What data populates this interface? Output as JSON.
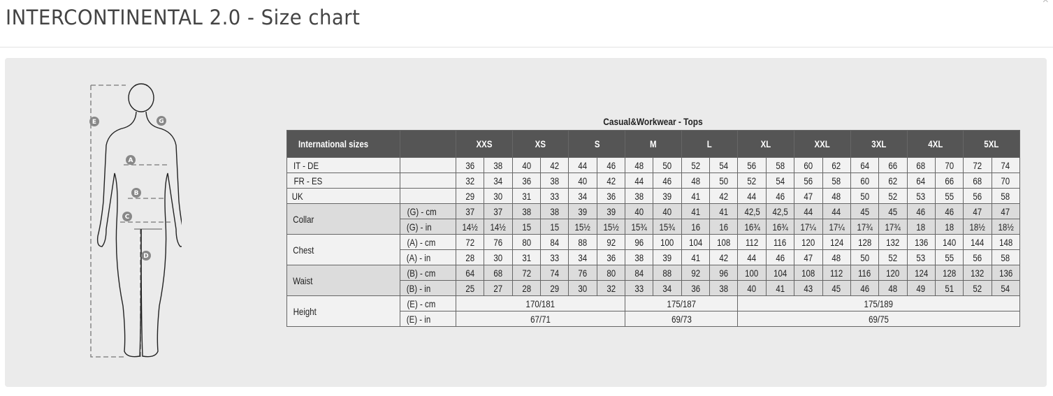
{
  "header": {
    "title": "INTERCONTINENTAL 2.0 - Size chart",
    "close_label": "×"
  },
  "figure": {
    "labels": [
      "A",
      "B",
      "C",
      "D",
      "E",
      "G"
    ]
  },
  "table": {
    "caption": "Casual&Workwear - Tops",
    "header_label": "International sizes",
    "sizes": [
      "XXS",
      "XS",
      "S",
      "M",
      "L",
      "XL",
      "XXL",
      "3XL",
      "4XL",
      "5XL"
    ],
    "rows": [
      {
        "group": "IT - DE",
        "unit": "",
        "shade": "light",
        "values": [
          "36",
          "38",
          "40",
          "42",
          "44",
          "46",
          "48",
          "50",
          "52",
          "54",
          "56",
          "58",
          "60",
          "62",
          "64",
          "66",
          "68",
          "70",
          "72",
          "74"
        ]
      },
      {
        "group": "FR - ES",
        "unit": "",
        "shade": "light",
        "values": [
          "32",
          "34",
          "36",
          "38",
          "40",
          "42",
          "44",
          "46",
          "48",
          "50",
          "52",
          "54",
          "56",
          "58",
          "60",
          "62",
          "64",
          "66",
          "68",
          "70"
        ]
      },
      {
        "group": "UK",
        "unit": "",
        "shade": "light",
        "values": [
          "29",
          "30",
          "31",
          "33",
          "34",
          "36",
          "38",
          "39",
          "41",
          "42",
          "44",
          "46",
          "47",
          "48",
          "50",
          "52",
          "53",
          "55",
          "56",
          "58"
        ]
      },
      {
        "group": "Collar",
        "unit": "(G) - cm",
        "shade": "dark",
        "values": [
          "37",
          "37",
          "38",
          "38",
          "39",
          "39",
          "40",
          "40",
          "41",
          "41",
          "42,5",
          "42,5",
          "44",
          "44",
          "45",
          "45",
          "46",
          "46",
          "47",
          "47"
        ]
      },
      {
        "group": "Collar",
        "unit": "(G)  - in",
        "shade": "dark",
        "values": [
          "14½",
          "14½",
          "15",
          "15",
          "15½",
          "15½",
          "15¾",
          "15¾",
          "16",
          "16",
          "16¾",
          "16¾",
          "17¼",
          "17¼",
          "17¾",
          "17¾",
          "18",
          "18",
          "18½",
          "18½"
        ]
      },
      {
        "group": "Chest",
        "unit": "(A) - cm",
        "shade": "light",
        "values": [
          "72",
          "76",
          "80",
          "84",
          "88",
          "92",
          "96",
          "100",
          "104",
          "108",
          "112",
          "116",
          "120",
          "124",
          "128",
          "132",
          "136",
          "140",
          "144",
          "148"
        ]
      },
      {
        "group": "Chest",
        "unit": "(A) - in",
        "shade": "light",
        "values": [
          "28",
          "30",
          "31",
          "33",
          "34",
          "36",
          "38",
          "39",
          "41",
          "42",
          "44",
          "46",
          "47",
          "48",
          "50",
          "52",
          "53",
          "55",
          "56",
          "58"
        ]
      },
      {
        "group": "Waist",
        "unit": "(B) - cm",
        "shade": "dark",
        "values": [
          "64",
          "68",
          "72",
          "74",
          "76",
          "80",
          "84",
          "88",
          "92",
          "96",
          "100",
          "104",
          "108",
          "112",
          "116",
          "120",
          "124",
          "128",
          "132",
          "136"
        ]
      },
      {
        "group": "Waist",
        "unit": "(B) - in",
        "shade": "dark",
        "values": [
          "25",
          "27",
          "28",
          "29",
          "30",
          "32",
          "33",
          "34",
          "36",
          "38",
          "40",
          "41",
          "43",
          "45",
          "46",
          "48",
          "49",
          "51",
          "52",
          "54"
        ]
      },
      {
        "group": "Height",
        "unit": "(E) - cm",
        "shade": "light",
        "spans": [
          {
            "sizes": [
              "XXS",
              "XS",
              "S"
            ],
            "value": "170/181"
          },
          {
            "sizes": [
              "M",
              "L"
            ],
            "value": "175/187"
          },
          {
            "sizes": [
              "XL",
              "XXL",
              "3XL",
              "4XL",
              "5XL"
            ],
            "value": "175/189"
          }
        ]
      },
      {
        "group": "Height",
        "unit": "(E) - in",
        "shade": "light",
        "spans": [
          {
            "sizes": [
              "XXS",
              "XS",
              "S"
            ],
            "value": "67/71"
          },
          {
            "sizes": [
              "M",
              "L"
            ],
            "value": "69/73"
          },
          {
            "sizes": [
              "XL",
              "XXL",
              "3XL",
              "4XL",
              "5XL"
            ],
            "value": "69/75"
          }
        ]
      }
    ]
  }
}
